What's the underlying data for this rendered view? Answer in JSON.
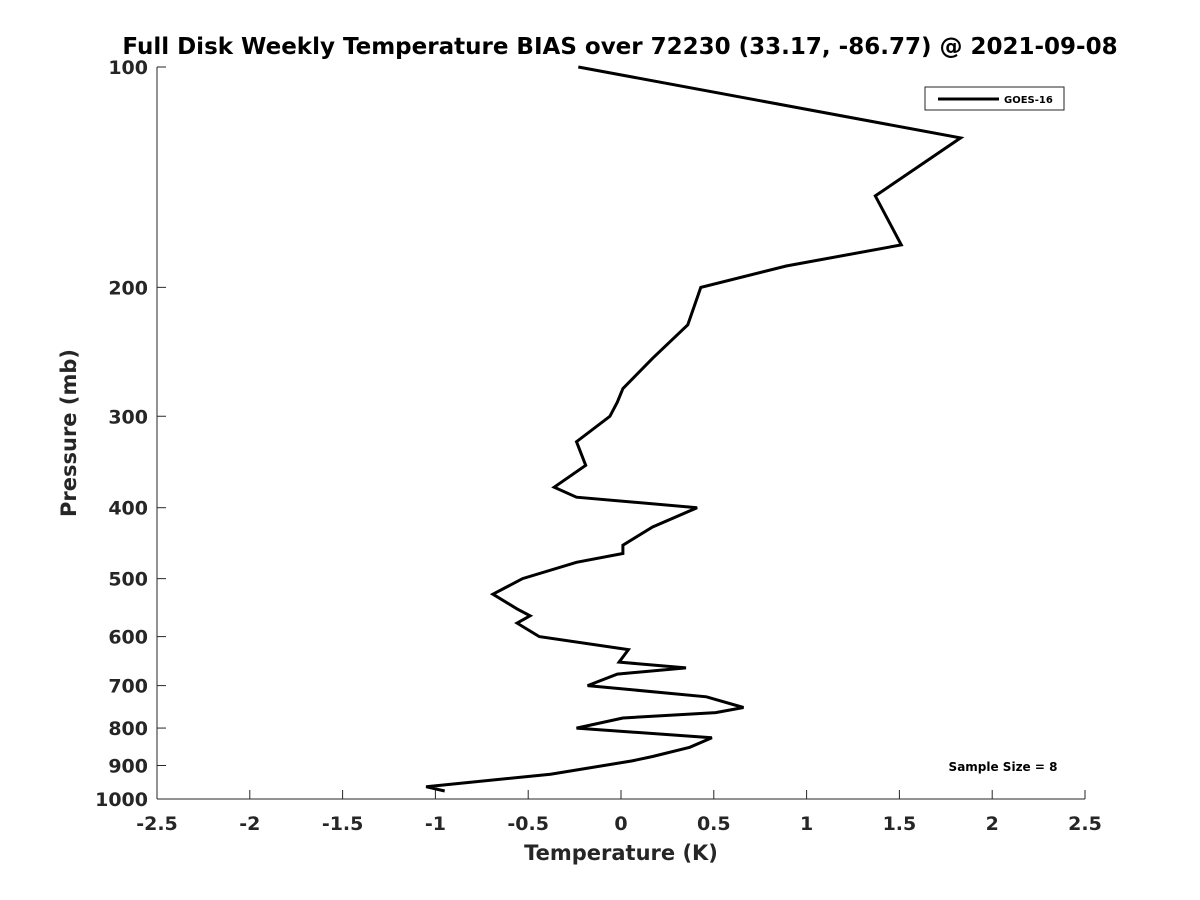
{
  "chart_data": {
    "type": "line",
    "title": "Full Disk Weekly Temperature BIAS over 72230 (33.17, -86.77) @ 2021-09-08",
    "xlabel": "Temperature (K)",
    "ylabel": "Pressure (mb)",
    "xlim": [
      -2.5,
      2.5
    ],
    "ylim": [
      100,
      1000
    ],
    "yscale": "log",
    "y_reversed": true,
    "xticks": [
      "-2.5",
      "-2",
      "-1.5",
      "-1",
      "-0.5",
      "0",
      "0.5",
      "1",
      "1.5",
      "2",
      "2.5"
    ],
    "yticks": [
      "100",
      "200",
      "300",
      "400",
      "500",
      "600",
      "700",
      "800",
      "900",
      "1000"
    ],
    "grid": false,
    "legend_position": "top-right",
    "series": [
      {
        "name": "GOES-16",
        "color": "#000000",
        "points": [
          [
            -0.23,
            100
          ],
          [
            1.83,
            125
          ],
          [
            1.37,
            150
          ],
          [
            1.51,
            175
          ],
          [
            0.89,
            187
          ],
          [
            0.43,
            200
          ],
          [
            0.36,
            225
          ],
          [
            0.17,
            250
          ],
          [
            0.01,
            275
          ],
          [
            -0.02,
            287
          ],
          [
            -0.06,
            300
          ],
          [
            -0.24,
            325
          ],
          [
            -0.19,
            350
          ],
          [
            -0.36,
            375
          ],
          [
            -0.24,
            387
          ],
          [
            0.41,
            400
          ],
          [
            0.17,
            425
          ],
          [
            0.01,
            450
          ],
          [
            0.01,
            462
          ],
          [
            -0.24,
            475
          ],
          [
            -0.53,
            500
          ],
          [
            -0.69,
            525
          ],
          [
            -0.56,
            550
          ],
          [
            -0.49,
            562
          ],
          [
            -0.56,
            575
          ],
          [
            -0.44,
            600
          ],
          [
            0.04,
            625
          ],
          [
            -0.01,
            650
          ],
          [
            0.35,
            662
          ],
          [
            -0.02,
            675
          ],
          [
            -0.18,
            700
          ],
          [
            0.46,
            725
          ],
          [
            0.66,
            750
          ],
          [
            0.51,
            762
          ],
          [
            0.01,
            775
          ],
          [
            -0.24,
            800
          ],
          [
            0.49,
            825
          ],
          [
            0.37,
            850
          ],
          [
            0.17,
            875
          ],
          [
            0.06,
            887
          ],
          [
            -0.38,
            925
          ],
          [
            -1.05,
            962
          ],
          [
            -0.95,
            975
          ]
        ]
      }
    ],
    "annotation": "Sample Size = 8"
  }
}
